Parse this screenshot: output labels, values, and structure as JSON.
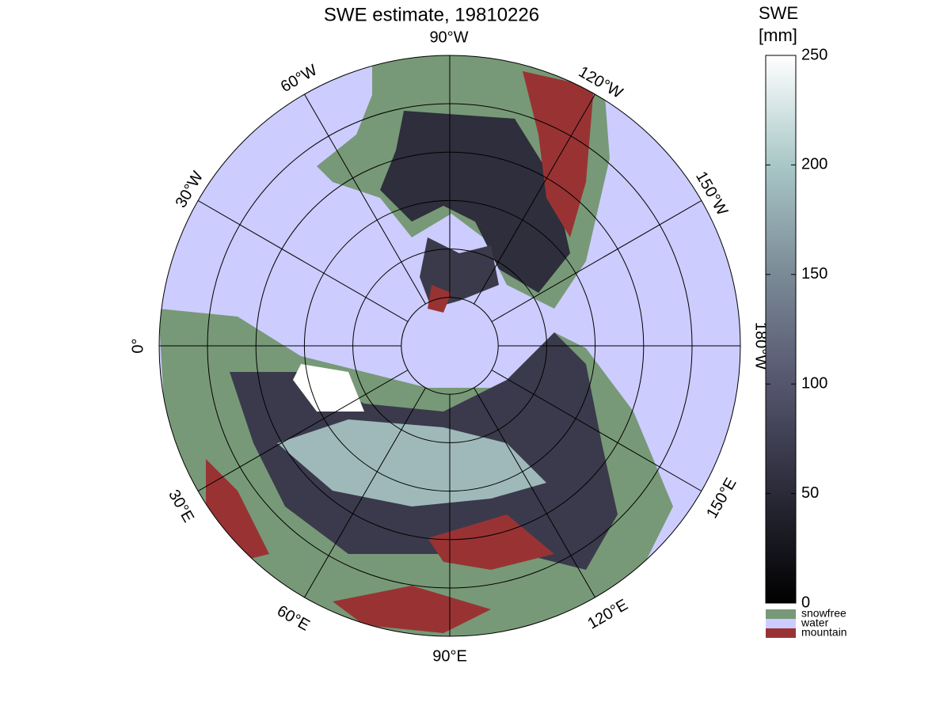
{
  "title": "SWE estimate, 19810226",
  "colorbar": {
    "title": [
      "SWE",
      "[mm]"
    ],
    "clim": [
      0,
      250
    ],
    "ticks": [
      0,
      50,
      100,
      150,
      200,
      250
    ],
    "colormap": [
      "#000000",
      "#2a2a38",
      "#55556e",
      "#7a8a96",
      "#a9c7c7",
      "#ffffff"
    ]
  },
  "legend": [
    {
      "label": "snowfree",
      "color": "#779977"
    },
    {
      "label": "water",
      "color": "#ccccff"
    },
    {
      "label": "mountain",
      "color": "#993333"
    }
  ],
  "longitude_labels": [
    "90°W",
    "120°W",
    "150°W",
    "180°W",
    "150°E",
    "120°E",
    "90°E",
    "60°E",
    "30°E",
    "0°",
    "30°W",
    "60°W"
  ]
}
